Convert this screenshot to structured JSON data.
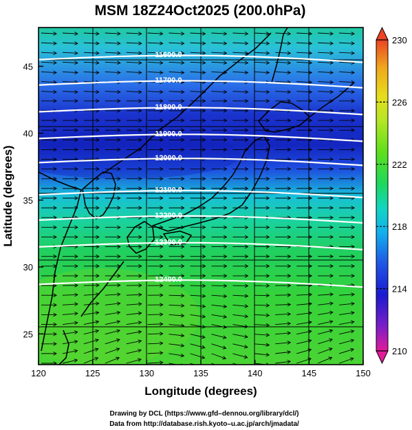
{
  "title": "MSM 18Z24Oct2025 (200.0hPa)",
  "xlabel": "Longitude (degrees)",
  "ylabel": "Latitude  (degrees)",
  "x_ticks": [
    "120",
    "125",
    "130",
    "135",
    "140",
    "145",
    "150"
  ],
  "y_ticks": [
    "25",
    "30",
    "35",
    "40",
    "45"
  ],
  "colorbar": {
    "labels": [
      "230",
      "226",
      "222",
      "218",
      "214",
      "210"
    ],
    "min": 210,
    "max": 230,
    "colors": [
      "#e21a9a",
      "#7a1ec8",
      "#1a1ad0",
      "#1f55e6",
      "#12b0ee",
      "#12d6c0",
      "#1ed85a",
      "#5fdf1a",
      "#b4e626",
      "#e6dd1e",
      "#f0a81c",
      "#ec4424"
    ]
  },
  "contours": [
    {
      "label": "11600.0",
      "lat": 45.5
    },
    {
      "label": "11700.0",
      "lat": 43.6
    },
    {
      "label": "11800.0",
      "lat": 41.6
    },
    {
      "label": "11900.0",
      "lat": 39.6
    },
    {
      "label": "12000.0",
      "lat": 37.8
    },
    {
      "label": "12100.0",
      "lat": 35.4
    },
    {
      "label": "12200.0",
      "lat": 33.5
    },
    {
      "label": "12300.0",
      "lat": 31.5
    },
    {
      "label": "12400.0",
      "lat": 28.7
    }
  ],
  "credits": {
    "line1": "Drawing by DCL (https://www.gfd–dennou.org/library/dcl/)",
    "line2": "Data from http://database.rish.kyoto–u.ac.jp/arch/jmadata/"
  }
}
